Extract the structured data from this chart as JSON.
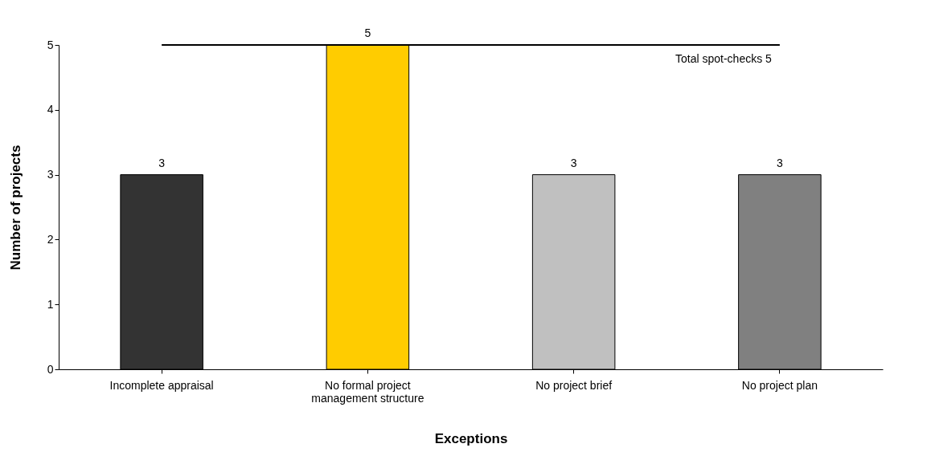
{
  "chart_data": {
    "type": "bar",
    "xlabel": "Exceptions",
    "ylabel": "Number of projects",
    "categories": [
      "Incomplete appraisal",
      "No formal project management structure",
      "No project brief",
      "No project plan"
    ],
    "values": [
      3,
      5,
      3,
      3
    ],
    "colors": [
      "#333333",
      "#ffcc00",
      "#c0c0c0",
      "#808080"
    ],
    "ylim": [
      0,
      5
    ],
    "yticks": [
      0,
      1,
      2,
      3,
      4,
      5
    ],
    "grid": false,
    "data_labels": true,
    "ref_lines": [
      {
        "axis": "y",
        "value": 5,
        "label": "Total spot-checks 5",
        "color": "#000000"
      }
    ]
  }
}
